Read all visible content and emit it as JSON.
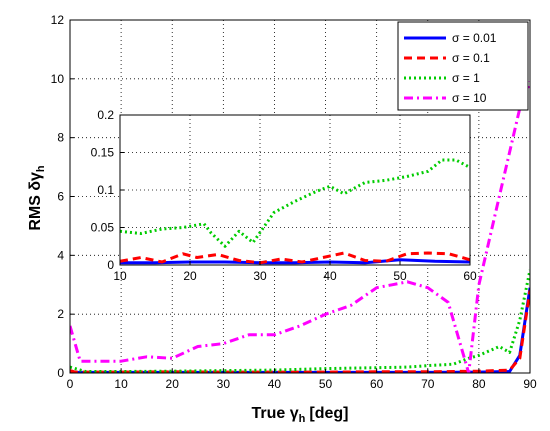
{
  "chart_data": {
    "type": "line",
    "xlabel": "True γ",
    "xlabel_sub": "h",
    "xlabel_unit": "[deg]",
    "ylabel": "RMS δγ",
    "ylabel_sub": "h",
    "xlim": [
      0,
      90
    ],
    "ylim": [
      0,
      12
    ],
    "xticks": [
      "0",
      "10",
      "20",
      "30",
      "40",
      "50",
      "60",
      "70",
      "80",
      "90"
    ],
    "yticks": [
      "0",
      "2",
      "4",
      "6",
      "8",
      "10",
      "12"
    ],
    "grid": true,
    "legend_position": "top-right",
    "series": [
      {
        "name": "σ = 0.01",
        "color": "#0000ff",
        "style": "solid",
        "x": [
          0,
          1,
          10,
          20,
          30,
          40,
          50,
          60,
          70,
          80,
          86,
          88,
          90
        ],
        "y": [
          0.05,
          0.02,
          0.02,
          0.02,
          0.02,
          0.02,
          0.02,
          0.02,
          0.02,
          0.03,
          0.05,
          0.6,
          2.9
        ]
      },
      {
        "name": "σ = 0.1",
        "color": "#ff0000",
        "style": "dashed",
        "x": [
          0,
          1,
          10,
          20,
          30,
          40,
          50,
          60,
          70,
          80,
          86,
          88,
          90
        ],
        "y": [
          0.08,
          0.03,
          0.03,
          0.04,
          0.03,
          0.03,
          0.03,
          0.04,
          0.04,
          0.06,
          0.1,
          0.5,
          2.8
        ]
      },
      {
        "name": "σ = 1",
        "color": "#00cc00",
        "style": "dotted",
        "x": [
          0,
          3,
          10,
          20,
          30,
          40,
          50,
          60,
          66,
          70,
          75,
          78,
          80,
          84,
          86,
          88,
          90
        ],
        "y": [
          0.2,
          0.05,
          0.05,
          0.06,
          0.08,
          0.1,
          0.15,
          0.18,
          0.2,
          0.25,
          0.3,
          0.5,
          0.6,
          0.9,
          0.7,
          1.8,
          3.5
        ]
      },
      {
        "name": "σ = 10",
        "color": "#ff00ff",
        "style": "dashdot",
        "x": [
          0,
          2,
          4,
          8,
          10,
          15,
          20,
          25,
          30,
          35,
          40,
          45,
          50,
          55,
          60,
          63,
          66,
          70,
          74,
          78,
          80,
          84,
          88,
          90
        ],
        "y": [
          1.6,
          0.4,
          0.4,
          0.4,
          0.4,
          0.55,
          0.5,
          0.9,
          1.0,
          1.3,
          1.3,
          1.6,
          2.0,
          2.3,
          2.9,
          3.0,
          3.1,
          2.9,
          2.4,
          0.0,
          3.0,
          6.0,
          9.0,
          9.9
        ]
      }
    ],
    "inset": {
      "type": "line",
      "xlim": [
        10,
        60
      ],
      "ylim": [
        0,
        0.2
      ],
      "xticks": [
        "10",
        "20",
        "30",
        "40",
        "50",
        "60"
      ],
      "yticks": [
        "0",
        "0.05",
        "0.1",
        "0.15",
        "0.2"
      ],
      "series": [
        {
          "name": "σ = 0.01",
          "color": "#0000ff",
          "style": "solid",
          "x": [
            10,
            15,
            20,
            25,
            30,
            35,
            40,
            45,
            50,
            55,
            60
          ],
          "y": [
            0.003,
            0.003,
            0.004,
            0.004,
            0.003,
            0.003,
            0.004,
            0.003,
            0.007,
            0.005,
            0.004
          ]
        },
        {
          "name": "σ = 0.1",
          "color": "#ff0000",
          "style": "dashed",
          "x": [
            10,
            13,
            16,
            19,
            21,
            24,
            27,
            30,
            33,
            36,
            39,
            42,
            45,
            48,
            51,
            54,
            57,
            60
          ],
          "y": [
            0.005,
            0.01,
            0.004,
            0.015,
            0.01,
            0.014,
            0.006,
            0.003,
            0.008,
            0.004,
            0.01,
            0.016,
            0.006,
            0.005,
            0.015,
            0.016,
            0.015,
            0.007
          ]
        },
        {
          "name": "σ = 1",
          "color": "#00cc00",
          "style": "dotted",
          "x": [
            10,
            13,
            16,
            19,
            22,
            23,
            25,
            27,
            29,
            32,
            35,
            38,
            40,
            42,
            45,
            48,
            51,
            54,
            56,
            58,
            60
          ],
          "y": [
            0.045,
            0.042,
            0.048,
            0.05,
            0.055,
            0.043,
            0.025,
            0.045,
            0.03,
            0.07,
            0.085,
            0.098,
            0.105,
            0.095,
            0.11,
            0.113,
            0.118,
            0.125,
            0.14,
            0.14,
            0.13
          ]
        }
      ]
    }
  }
}
